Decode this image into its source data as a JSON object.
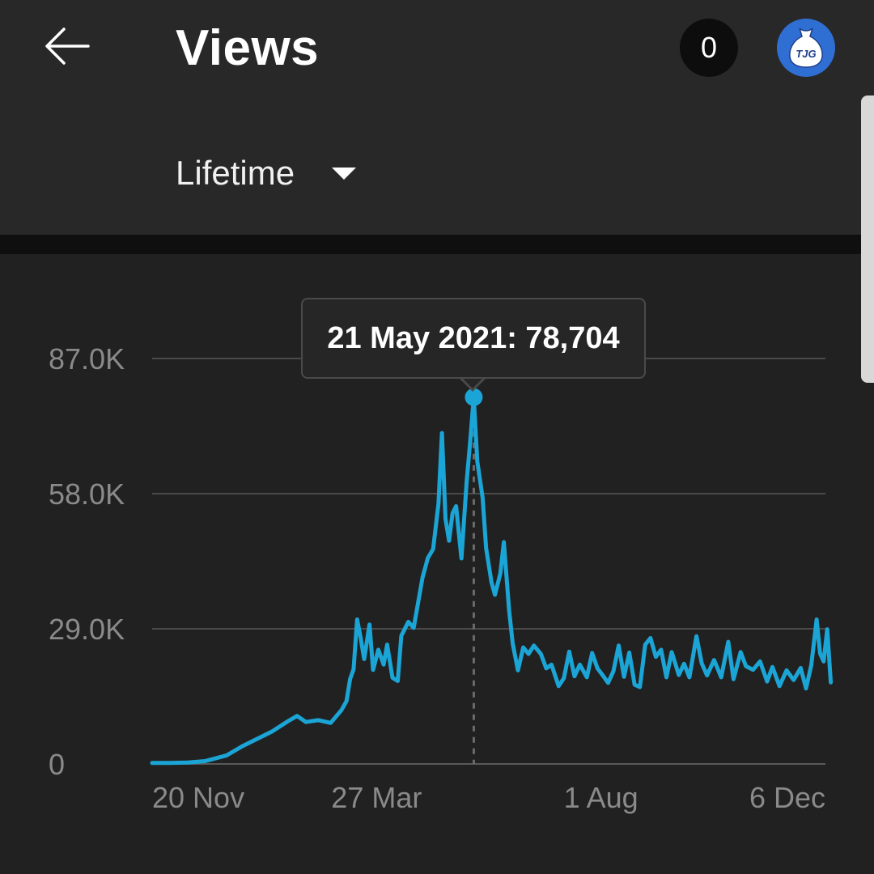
{
  "header": {
    "title": "Views",
    "notification_count": "0",
    "avatar_text": "TJG",
    "range_label": "Lifetime"
  },
  "tooltip": {
    "text": "21 May 2021: 78,704"
  },
  "chart_data": {
    "type": "line",
    "title": "",
    "xlabel": "",
    "ylabel": "",
    "ylim": [
      0,
      87000
    ],
    "y_ticks": [
      "0",
      "29.0K",
      "58.0K",
      "87.0K"
    ],
    "y_tick_values": [
      0,
      29000,
      58000,
      87000
    ],
    "x_ticks": [
      "20 Nov",
      "27 Mar",
      "1 Aug",
      "6 Dec"
    ],
    "x_tick_dates": [
      "2020-11-20",
      "2021-03-27",
      "2021-08-01",
      "2021-12-06"
    ],
    "grid": true,
    "color": "#1ba5d6",
    "highlight": {
      "date": "2021-05-21",
      "value": 78704
    },
    "series": [
      {
        "points": [
          [
            "2020-11-20",
            200
          ],
          [
            "2020-11-30",
            200
          ],
          [
            "2020-12-10",
            300
          ],
          [
            "2020-12-20",
            600
          ],
          [
            "2021-01-01",
            1800
          ],
          [
            "2021-01-10",
            3800
          ],
          [
            "2021-01-18",
            5300
          ],
          [
            "2021-01-27",
            7000
          ],
          [
            "2021-02-05",
            9200
          ],
          [
            "2021-02-10",
            10300
          ],
          [
            "2021-02-15",
            9000
          ],
          [
            "2021-02-22",
            9400
          ],
          [
            "2021-03-01",
            8800
          ],
          [
            "2021-03-07",
            11500
          ],
          [
            "2021-03-10",
            13500
          ],
          [
            "2021-03-12",
            18200
          ],
          [
            "2021-03-14",
            20300
          ],
          [
            "2021-03-16",
            31000
          ],
          [
            "2021-03-18",
            27000
          ],
          [
            "2021-03-20",
            22500
          ],
          [
            "2021-03-23",
            29900
          ],
          [
            "2021-03-25",
            20200
          ],
          [
            "2021-03-28",
            24500
          ],
          [
            "2021-03-31",
            21300
          ],
          [
            "2021-04-02",
            25600
          ],
          [
            "2021-04-05",
            18500
          ],
          [
            "2021-04-08",
            17800
          ],
          [
            "2021-04-10",
            27500
          ],
          [
            "2021-04-14",
            30500
          ],
          [
            "2021-04-17",
            29200
          ],
          [
            "2021-04-22",
            40000
          ],
          [
            "2021-04-25",
            44200
          ],
          [
            "2021-04-28",
            46100
          ],
          [
            "2021-05-01",
            55800
          ],
          [
            "2021-05-03",
            71000
          ],
          [
            "2021-05-05",
            52600
          ],
          [
            "2021-05-07",
            47900
          ],
          [
            "2021-05-09",
            53800
          ],
          [
            "2021-05-11",
            55300
          ],
          [
            "2021-05-14",
            44100
          ],
          [
            "2021-05-17",
            60700
          ],
          [
            "2021-05-19",
            69400
          ],
          [
            "2021-05-21",
            78704
          ],
          [
            "2021-05-23",
            64900
          ],
          [
            "2021-05-26",
            57100
          ],
          [
            "2021-05-28",
            46300
          ],
          [
            "2021-05-31",
            39000
          ],
          [
            "2021-06-02",
            36300
          ],
          [
            "2021-06-05",
            40800
          ],
          [
            "2021-06-07",
            47600
          ],
          [
            "2021-06-10",
            33000
          ],
          [
            "2021-06-12",
            25900
          ],
          [
            "2021-06-15",
            20100
          ],
          [
            "2021-06-18",
            25000
          ],
          [
            "2021-06-21",
            23600
          ],
          [
            "2021-06-24",
            25400
          ],
          [
            "2021-06-28",
            23600
          ],
          [
            "2021-07-01",
            20500
          ],
          [
            "2021-07-04",
            21300
          ],
          [
            "2021-07-08",
            16700
          ],
          [
            "2021-07-11",
            18400
          ],
          [
            "2021-07-14",
            24100
          ],
          [
            "2021-07-17",
            18800
          ],
          [
            "2021-07-20",
            21300
          ],
          [
            "2021-07-24",
            18600
          ],
          [
            "2021-07-27",
            23800
          ],
          [
            "2021-07-30",
            20500
          ],
          [
            "2021-08-02",
            19000
          ],
          [
            "2021-08-05",
            17400
          ],
          [
            "2021-08-08",
            19900
          ],
          [
            "2021-08-11",
            25400
          ],
          [
            "2021-08-14",
            18700
          ],
          [
            "2021-08-17",
            23900
          ],
          [
            "2021-08-20",
            17000
          ],
          [
            "2021-08-23",
            16500
          ],
          [
            "2021-08-26",
            25600
          ],
          [
            "2021-08-29",
            27000
          ],
          [
            "2021-09-01",
            23000
          ],
          [
            "2021-09-04",
            24500
          ],
          [
            "2021-09-07",
            18600
          ],
          [
            "2021-09-10",
            24000
          ],
          [
            "2021-09-14",
            19100
          ],
          [
            "2021-09-17",
            21500
          ],
          [
            "2021-09-20",
            18600
          ],
          [
            "2021-09-24",
            27400
          ],
          [
            "2021-09-27",
            21600
          ],
          [
            "2021-09-30",
            19000
          ],
          [
            "2021-10-04",
            22300
          ],
          [
            "2021-10-08",
            18600
          ],
          [
            "2021-10-12",
            26200
          ],
          [
            "2021-10-15",
            18200
          ],
          [
            "2021-10-19",
            24000
          ],
          [
            "2021-10-22",
            21000
          ],
          [
            "2021-10-26",
            20200
          ],
          [
            "2021-10-30",
            22000
          ],
          [
            "2021-11-03",
            17700
          ],
          [
            "2021-11-06",
            20800
          ],
          [
            "2021-11-10",
            16700
          ],
          [
            "2021-11-14",
            20100
          ],
          [
            "2021-11-18",
            18000
          ],
          [
            "2021-11-22",
            20600
          ],
          [
            "2021-11-25",
            16200
          ],
          [
            "2021-11-28",
            21200
          ],
          [
            "2021-12-01",
            31000
          ],
          [
            "2021-12-03",
            23700
          ],
          [
            "2021-12-05",
            22000
          ],
          [
            "2021-12-07",
            28900
          ],
          [
            "2021-12-09",
            17500
          ]
        ]
      }
    ]
  }
}
